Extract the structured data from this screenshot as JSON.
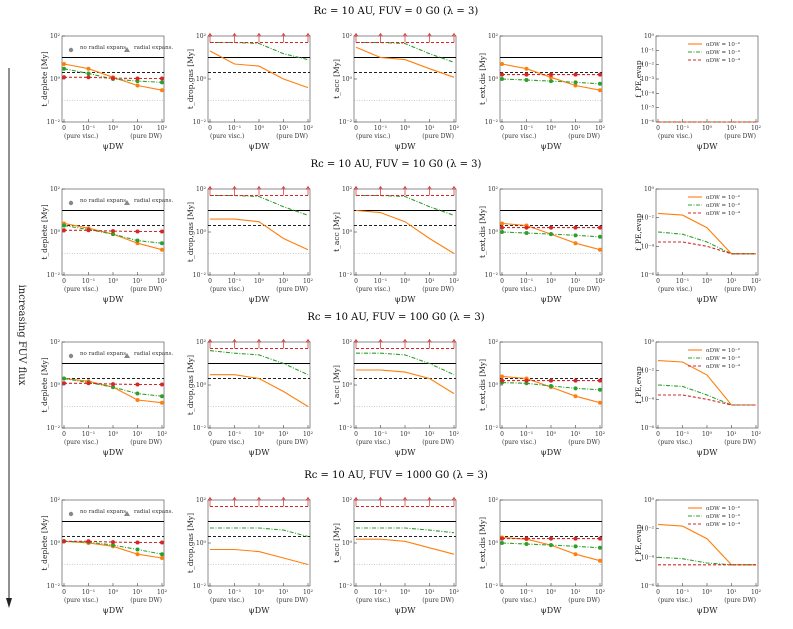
{
  "side_label": "increasing FUV flux",
  "common": {
    "x_ticks": [
      "0",
      "10⁻¹",
      "10⁰",
      "10¹",
      "10²"
    ],
    "x_ends": [
      "(pure visc.)",
      "(pure DW)"
    ],
    "xlabel": "ψDW",
    "y_ticks": [
      "10⁻²",
      "10⁰",
      "10²"
    ],
    "legend_marker": {
      "no_radial": "no radial expans.",
      "radial": "radial expans."
    },
    "legend_lines": [
      "αDW = 10⁻²",
      "αDW = 10⁻³",
      "αDW = 10⁻⁴"
    ]
  },
  "colors": {
    "orange": "#ff7f0e",
    "green": "#2ca02c",
    "red": "#d62728",
    "black": "#000000",
    "gray": "#9a9a9a"
  },
  "rows": [
    {
      "title": "Rc = 10 AU, FUV = 0 G0 (λ = 3)"
    },
    {
      "title": "Rc = 10 AU, FUV = 10 G0 (λ = 3)"
    },
    {
      "title": "Rc = 10 AU, FUV = 100 G0 (λ = 3)"
    },
    {
      "title": "Rc = 10 AU, FUV = 1000 G0 (λ = 3)"
    }
  ],
  "columns": [
    {
      "ylabel": "t_deplete [My]"
    },
    {
      "ylabel": "t_drop,gas [My]"
    },
    {
      "ylabel": "t_acc [My]"
    },
    {
      "ylabel": "t_ext,dis [My]"
    },
    {
      "ylabel": "f_PE,evap",
      "xlabel": "ψDW"
    }
  ],
  "chart_data": {
    "type": "line",
    "x": [
      0,
      0.1,
      1,
      10,
      100
    ],
    "x_scale": "log-with-zero",
    "y_scale": "log",
    "ylim_time": [
      0.01,
      100
    ],
    "ylim_frac": [
      1e-06,
      1
    ],
    "reference_lines_time": [
      {
        "value": 10,
        "style": "solid-black"
      },
      {
        "value": 2,
        "style": "dashed-black"
      },
      {
        "value": 0.1,
        "style": "dotted-gray"
      }
    ],
    "rows": [
      {
        "panels": [
          {
            "series": [
              {
                "color": "orange",
                "values": [
                  5,
                  3,
                  1.2,
                  0.5,
                  0.3
                ]
              },
              {
                "color": "green",
                "values": [
                  3,
                  1.8,
                  1.0,
                  0.8,
                  0.7
                ]
              },
              {
                "color": "red",
                "values": [
                  1.2,
                  1.2,
                  1.1,
                  1.05,
                  1.05
                ]
              }
            ]
          },
          {
            "series": [
              {
                "color": "orange",
                "values": [
                  20,
                  5,
                  4,
                  1,
                  0.4
                ]
              },
              {
                "color": "green",
                "values": [
                  50,
                  50,
                  45,
                  15,
                  8
                ]
              },
              {
                "color": "red",
                "values": [
                  50,
                  50,
                  50,
                  50,
                  50
                ],
                "upper_limit": true
              }
            ]
          },
          {
            "series": [
              {
                "color": "orange",
                "values": [
                  30,
                  10,
                  8,
                  3,
                  1.2
                ]
              },
              {
                "color": "green",
                "values": [
                  50,
                  50,
                  45,
                  15,
                  6
                ]
              },
              {
                "color": "red",
                "values": [
                  50,
                  50,
                  50,
                  50,
                  50
                ],
                "upper_limit": true
              }
            ]
          },
          {
            "series": [
              {
                "color": "orange",
                "values": [
                  5,
                  3,
                  1.2,
                  0.5,
                  0.3
                ]
              },
              {
                "color": "green",
                "values": [
                  1.0,
                  0.9,
                  0.8,
                  0.7,
                  0.6
                ]
              },
              {
                "color": "red",
                "values": [
                  1.6,
                  1.6,
                  1.6,
                  1.6,
                  1.6
                ]
              }
            ]
          },
          {
            "series": [
              {
                "color": "orange",
                "values": [
                  1e-06,
                  1e-06,
                  1e-06,
                  1e-06,
                  1e-06
                ]
              },
              {
                "color": "green",
                "values": [
                  1e-06,
                  1e-06,
                  1e-06,
                  1e-06,
                  1e-06
                ]
              },
              {
                "color": "red",
                "values": [
                  1e-06,
                  1e-06,
                  1e-06,
                  1e-06,
                  1e-06
                ]
              }
            ]
          }
        ]
      },
      {
        "panels": [
          {
            "series": [
              {
                "color": "orange",
                "values": [
                  2.5,
                  1.5,
                  0.8,
                  0.3,
                  0.15
                ]
              },
              {
                "color": "green",
                "values": [
                  2.0,
                  1.3,
                  0.8,
                  0.4,
                  0.3
                ]
              },
              {
                "color": "red",
                "values": [
                  1.2,
                  1.2,
                  1.1,
                  1.05,
                  1.05
                ]
              }
            ]
          },
          {
            "series": [
              {
                "color": "orange",
                "values": [
                  4,
                  4,
                  3,
                  0.5,
                  0.15
                ]
              },
              {
                "color": "green",
                "values": [
                  50,
                  50,
                  45,
                  15,
                  6
                ]
              },
              {
                "color": "red",
                "values": [
                  50,
                  50,
                  50,
                  50,
                  50
                ],
                "upper_limit": true
              }
            ]
          },
          {
            "series": [
              {
                "color": "orange",
                "values": [
                  10,
                  8,
                  3,
                  0.5,
                  0.1
                ]
              },
              {
                "color": "green",
                "values": [
                  50,
                  50,
                  45,
                  15,
                  6
                ]
              },
              {
                "color": "red",
                "values": [
                  50,
                  50,
                  50,
                  50,
                  50
                ],
                "upper_limit": true
              }
            ]
          },
          {
            "series": [
              {
                "color": "orange",
                "values": [
                  2.5,
                  2,
                  0.8,
                  0.3,
                  0.15
                ]
              },
              {
                "color": "green",
                "values": [
                  1.0,
                  0.9,
                  0.8,
                  0.7,
                  0.6
                ]
              },
              {
                "color": "red",
                "values": [
                  1.6,
                  1.6,
                  1.6,
                  1.6,
                  1.6
                ]
              }
            ]
          },
          {
            "series": [
              {
                "color": "orange",
                "values": [
                  0.02,
                  0.015,
                  0.002,
                  3e-05,
                  3e-05
                ]
              },
              {
                "color": "green",
                "values": [
                  0.001,
                  0.0007,
                  0.0002,
                  3e-05,
                  3e-05
                ]
              },
              {
                "color": "red",
                "values": [
                  0.0002,
                  0.0002,
                  0.0001,
                  3e-05,
                  3e-05
                ]
              }
            ]
          }
        ]
      },
      {
        "panels": [
          {
            "series": [
              {
                "color": "orange",
                "values": [
                  2,
                  1.5,
                  0.8,
                  0.2,
                  0.15
                ]
              },
              {
                "color": "green",
                "values": [
                  2.0,
                  1.3,
                  0.8,
                  0.4,
                  0.3
                ]
              },
              {
                "color": "red",
                "values": [
                  1.2,
                  1.2,
                  1.1,
                  1.05,
                  1.05
                ]
              }
            ]
          },
          {
            "series": [
              {
                "color": "orange",
                "values": [
                  3,
                  3,
                  2,
                  0.5,
                  0.1
                ]
              },
              {
                "color": "green",
                "values": [
                  40,
                  30,
                  25,
                  10,
                  3
                ]
              },
              {
                "color": "red",
                "values": [
                  50,
                  50,
                  50,
                  50,
                  50
                ],
                "upper_limit": true
              }
            ]
          },
          {
            "series": [
              {
                "color": "orange",
                "values": [
                  5,
                  5,
                  4,
                  2,
                  0.4
                ]
              },
              {
                "color": "green",
                "values": [
                  30,
                  30,
                  25,
                  10,
                  3
                ]
              },
              {
                "color": "red",
                "values": [
                  50,
                  50,
                  50,
                  50,
                  50
                ],
                "upper_limit": true
              }
            ]
          },
          {
            "series": [
              {
                "color": "orange",
                "values": [
                  2.5,
                  2,
                  0.8,
                  0.3,
                  0.15
                ]
              },
              {
                "color": "green",
                "values": [
                  1.3,
                  1.2,
                  0.9,
                  0.7,
                  0.6
                ]
              },
              {
                "color": "red",
                "values": [
                  1.6,
                  1.6,
                  1.6,
                  1.6,
                  1.6
                ]
              }
            ]
          },
          {
            "series": [
              {
                "color": "orange",
                "values": [
                  0.05,
                  0.04,
                  0.005,
                  4e-05,
                  4e-05
                ]
              },
              {
                "color": "green",
                "values": [
                  0.001,
                  0.0008,
                  0.0002,
                  4e-05,
                  4e-05
                ]
              },
              {
                "color": "red",
                "values": [
                  0.0002,
                  0.0002,
                  0.0001,
                  4e-05,
                  4e-05
                ]
              }
            ]
          }
        ]
      },
      {
        "panels": [
          {
            "series": [
              {
                "color": "orange",
                "values": [
                  1.2,
                  1.0,
                  0.7,
                  0.3,
                  0.2
                ]
              },
              {
                "color": "green",
                "values": [
                  1.2,
                  1.1,
                  0.8,
                  0.5,
                  0.3
                ]
              },
              {
                "color": "red",
                "values": [
                  1.2,
                  1.2,
                  1.1,
                  1.05,
                  1.05
                ]
              }
            ]
          },
          {
            "series": [
              {
                "color": "orange",
                "values": [
                  0.5,
                  0.5,
                  0.4,
                  0.2,
                  0.1
                ]
              },
              {
                "color": "green",
                "values": [
                  5,
                  5,
                  5,
                  4,
                  2
                ]
              },
              {
                "color": "red",
                "values": [
                  50,
                  50,
                  50,
                  50,
                  50
                ],
                "upper_limit": true
              }
            ]
          },
          {
            "series": [
              {
                "color": "orange",
                "values": [
                  1.5,
                  1.5,
                  1.2,
                  0.6,
                  0.3
                ]
              },
              {
                "color": "green",
                "values": [
                  5,
                  5,
                  5,
                  4,
                  3
                ]
              },
              {
                "color": "red",
                "values": [
                  50,
                  50,
                  50,
                  50,
                  50
                ],
                "upper_limit": true
              }
            ]
          },
          {
            "series": [
              {
                "color": "orange",
                "values": [
                  1.8,
                  1.5,
                  0.8,
                  0.3,
                  0.15
                ]
              },
              {
                "color": "green",
                "values": [
                  1.0,
                  0.9,
                  0.8,
                  0.7,
                  0.6
                ]
              },
              {
                "color": "red",
                "values": [
                  1.6,
                  1.6,
                  1.6,
                  1.6,
                  1.6
                ]
              }
            ]
          },
          {
            "series": [
              {
                "color": "orange",
                "values": [
                  0.02,
                  0.015,
                  0.002,
                  3e-05,
                  3e-05
                ]
              },
              {
                "color": "green",
                "values": [
                  0.0001,
                  8e-05,
                  4e-05,
                  3e-05,
                  3e-05
                ]
              },
              {
                "color": "red",
                "values": [
                  3e-05,
                  3e-05,
                  3e-05,
                  3e-05,
                  3e-05
                ]
              }
            ]
          }
        ]
      }
    ]
  }
}
